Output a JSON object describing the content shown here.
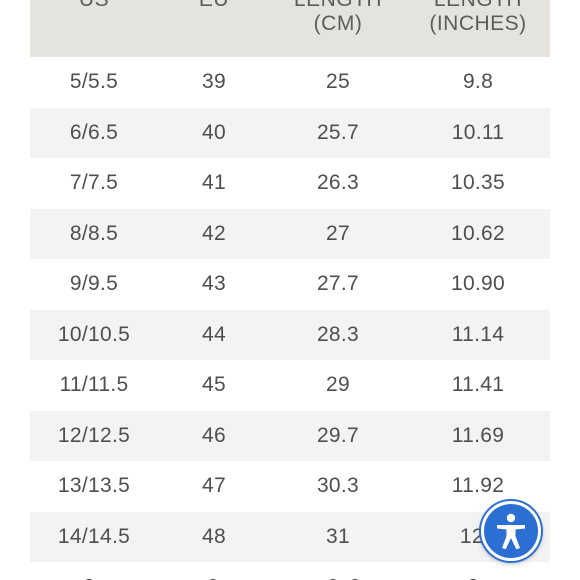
{
  "table": {
    "headers": [
      {
        "line1": "US",
        "line2": ""
      },
      {
        "line1": "EU",
        "line2": ""
      },
      {
        "line1": "LENGTH",
        "line2": "(CM)"
      },
      {
        "line1": "LENGTH",
        "line2": "(INCHES)"
      }
    ],
    "rows": [
      [
        "5/5.5",
        "39",
        "25",
        "9.8"
      ],
      [
        "6/6.5",
        "40",
        "25.7",
        "10.11"
      ],
      [
        "7/7.5",
        "41",
        "26.3",
        "10.35"
      ],
      [
        "8/8.5",
        "42",
        "27",
        "10.62"
      ],
      [
        "9/9.5",
        "43",
        "27.7",
        "10.90"
      ],
      [
        "10/10.5",
        "44",
        "28.3",
        "11.14"
      ],
      [
        "11/11.5",
        "45",
        "29",
        "11.41"
      ],
      [
        "12/12.5",
        "46",
        "29.7",
        "11.69"
      ],
      [
        "13/13.5",
        "47",
        "30.3",
        "11.92"
      ],
      [
        "14/14.5",
        "48",
        "31",
        "12.."
      ]
    ]
  },
  "accessibility": {
    "icon": "accessibility-icon",
    "color": "#2c6fd3"
  },
  "colors": {
    "header_bg": "#e4e3de",
    "stripe_bg": "#f3f3f3",
    "text": "#4f4f4f"
  }
}
